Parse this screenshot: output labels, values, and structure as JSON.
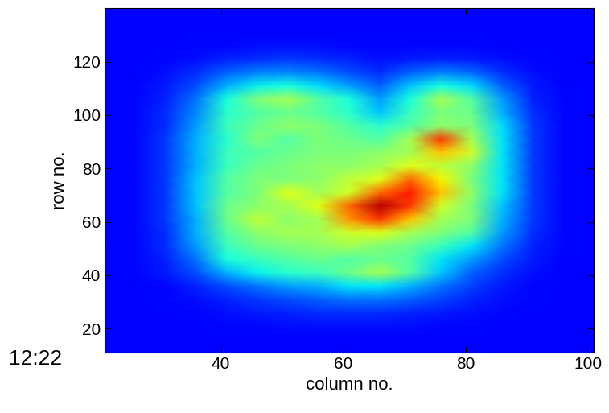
{
  "chart_data": {
    "type": "heatmap",
    "annotation": "12:22",
    "x_label": "column no.",
    "y_label": "row no.",
    "color": "jet",
    "x": [
      21,
      26,
      31,
      36,
      41,
      46,
      51,
      56,
      61,
      66,
      71,
      76,
      81,
      86,
      91,
      96,
      101
    ],
    "y": [
      11,
      16,
      21,
      26,
      31,
      36,
      41,
      46,
      51,
      56,
      61,
      66,
      71,
      76,
      81,
      86,
      91,
      96,
      101,
      106,
      111,
      116,
      121,
      126,
      131,
      136,
      141
    ],
    "cells": [
      [
        12,
        12,
        12,
        12,
        12,
        12,
        12,
        12,
        12,
        12,
        12,
        12,
        12,
        12,
        12,
        12,
        12
      ],
      [
        12,
        12,
        12,
        12,
        12,
        12,
        12,
        12,
        12,
        12,
        12,
        12,
        12,
        12,
        12,
        12,
        12
      ],
      [
        12,
        12,
        12,
        12,
        13,
        13,
        14,
        14,
        14,
        14,
        14,
        13,
        13,
        12,
        12,
        12,
        12
      ],
      [
        12,
        12,
        12,
        13,
        14,
        15,
        16,
        17,
        17,
        17,
        16,
        15,
        14,
        13,
        12,
        12,
        12
      ],
      [
        12,
        12,
        13,
        14,
        16,
        18,
        20,
        22,
        24,
        24,
        22,
        19,
        16,
        14,
        13,
        12,
        12
      ],
      [
        12,
        12,
        13,
        16,
        20,
        24,
        28,
        30,
        35,
        35,
        30,
        24,
        19,
        15,
        13,
        12,
        12
      ],
      [
        12,
        13,
        15,
        20,
        30,
        36,
        40,
        42,
        48,
        55,
        45,
        32,
        22,
        17,
        14,
        12,
        12
      ],
      [
        12,
        13,
        16,
        24,
        38,
        42,
        45,
        48,
        45,
        48,
        45,
        35,
        28,
        20,
        15,
        12,
        12
      ],
      [
        12,
        13,
        17,
        28,
        42,
        48,
        50,
        52,
        55,
        50,
        48,
        42,
        35,
        24,
        16,
        13,
        12
      ],
      [
        12,
        13,
        17,
        30,
        45,
        52,
        55,
        55,
        60,
        62,
        55,
        50,
        45,
        28,
        17,
        13,
        12
      ],
      [
        12,
        13,
        18,
        30,
        48,
        58,
        52,
        55,
        75,
        85,
        70,
        55,
        50,
        30,
        18,
        13,
        12
      ],
      [
        12,
        13,
        18,
        32,
        48,
        52,
        55,
        62,
        80,
        95,
        85,
        60,
        50,
        32,
        18,
        13,
        12
      ],
      [
        12,
        13,
        18,
        32,
        45,
        50,
        62,
        55,
        60,
        80,
        88,
        70,
        52,
        35,
        18,
        13,
        12
      ],
      [
        12,
        13,
        18,
        32,
        45,
        50,
        50,
        52,
        58,
        62,
        80,
        65,
        50,
        35,
        18,
        13,
        12
      ],
      [
        12,
        13,
        18,
        30,
        42,
        48,
        50,
        52,
        52,
        55,
        62,
        58,
        52,
        35,
        18,
        13,
        12
      ],
      [
        12,
        13,
        18,
        30,
        42,
        45,
        48,
        50,
        50,
        52,
        55,
        70,
        60,
        35,
        18,
        13,
        12
      ],
      [
        12,
        13,
        18,
        30,
        40,
        50,
        45,
        50,
        48,
        45,
        55,
        85,
        55,
        35,
        18,
        13,
        12
      ],
      [
        12,
        13,
        17,
        28,
        42,
        48,
        52,
        50,
        45,
        40,
        45,
        52,
        50,
        34,
        18,
        13,
        12
      ],
      [
        12,
        13,
        17,
        26,
        40,
        45,
        48,
        45,
        40,
        32,
        42,
        50,
        48,
        30,
        17,
        13,
        12
      ],
      [
        12,
        13,
        16,
        24,
        38,
        50,
        55,
        45,
        38,
        28,
        38,
        55,
        45,
        28,
        16,
        13,
        12
      ],
      [
        12,
        13,
        15,
        20,
        30,
        36,
        38,
        34,
        28,
        22,
        32,
        38,
        34,
        22,
        15,
        12,
        12
      ],
      [
        12,
        12,
        14,
        17,
        22,
        25,
        26,
        24,
        20,
        17,
        22,
        25,
        23,
        17,
        14,
        12,
        12
      ],
      [
        12,
        12,
        13,
        14,
        16,
        17,
        18,
        17,
        16,
        14,
        15,
        16,
        15,
        14,
        13,
        12,
        12
      ],
      [
        12,
        12,
        12,
        13,
        13,
        14,
        14,
        14,
        13,
        13,
        13,
        13,
        13,
        12,
        12,
        12,
        12
      ],
      [
        12,
        12,
        12,
        12,
        12,
        12,
        12,
        12,
        12,
        12,
        12,
        12,
        12,
        12,
        12,
        12,
        12
      ],
      [
        12,
        12,
        12,
        12,
        12,
        12,
        12,
        12,
        12,
        12,
        12,
        12,
        12,
        12,
        12,
        12,
        12
      ],
      [
        12,
        12,
        12,
        12,
        12,
        12,
        12,
        12,
        12,
        12,
        12,
        12,
        12,
        12,
        12,
        12,
        12
      ]
    ],
    "clim": [
      0,
      100
    ],
    "xlim": [
      21,
      101
    ],
    "ylim": [
      11,
      140
    ],
    "xticks": [
      40,
      60,
      80,
      100
    ],
    "yticks": [
      20,
      40,
      60,
      80,
      100,
      120
    ]
  }
}
